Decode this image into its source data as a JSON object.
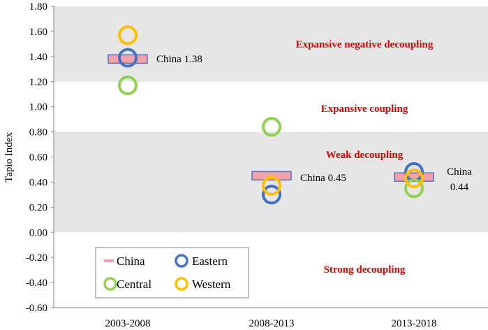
{
  "chart_data": {
    "type": "scatter",
    "ylabel": "Tapio Index",
    "xlabel": "",
    "ylim": [
      -0.6,
      1.8
    ],
    "ytick_step": 0.2,
    "yticks": [
      "-0.60",
      "-0.40",
      "-0.20",
      "0.00",
      "0.20",
      "0.40",
      "0.60",
      "0.80",
      "1.00",
      "1.20",
      "1.40",
      "1.60",
      "1.80"
    ],
    "categories": [
      "2003-2008",
      "2008-2013",
      "2013-2018"
    ],
    "bands": [
      {
        "from": 1.2,
        "to": 1.8,
        "label": "Expansive negative decoupling",
        "shaded": true
      },
      {
        "from": 0.8,
        "to": 1.2,
        "label": "Expansive coupling",
        "shaded": false
      },
      {
        "from": 0.0,
        "to": 0.8,
        "label": "Weak decoupling",
        "shaded": true
      },
      {
        "from": -0.6,
        "to": 0.0,
        "label": "Strong decoupling",
        "shaded": false
      }
    ],
    "series": [
      {
        "name": "China",
        "marker": "bar",
        "color": "#f4a0a8",
        "edge": "#5470c6",
        "values": [
          1.38,
          0.45,
          0.44
        ]
      },
      {
        "name": "Eastern",
        "marker": "circle",
        "color": "#4472c4",
        "values": [
          1.39,
          0.3,
          0.48
        ]
      },
      {
        "name": "Central",
        "marker": "circle",
        "color": "#92d050",
        "values": [
          1.17,
          0.84,
          0.35
        ]
      },
      {
        "name": "Western",
        "marker": "circle",
        "color": "#ffc000",
        "values": [
          1.57,
          0.37,
          0.43
        ]
      }
    ],
    "annotations": [
      {
        "category": "2003-2008",
        "lines": [
          "China 1.38"
        ]
      },
      {
        "category": "2008-2013",
        "lines": [
          "China 0.45"
        ]
      },
      {
        "category": "2013-2018",
        "lines": [
          "China",
          "0.44"
        ]
      }
    ],
    "legend": {
      "placement": "bottom-left",
      "items": [
        "China",
        "Eastern",
        "Central",
        "Western"
      ]
    },
    "colors": {
      "band_shade": "#e6e6e6",
      "axis": "#808080",
      "zone_label": "#e00000"
    }
  }
}
